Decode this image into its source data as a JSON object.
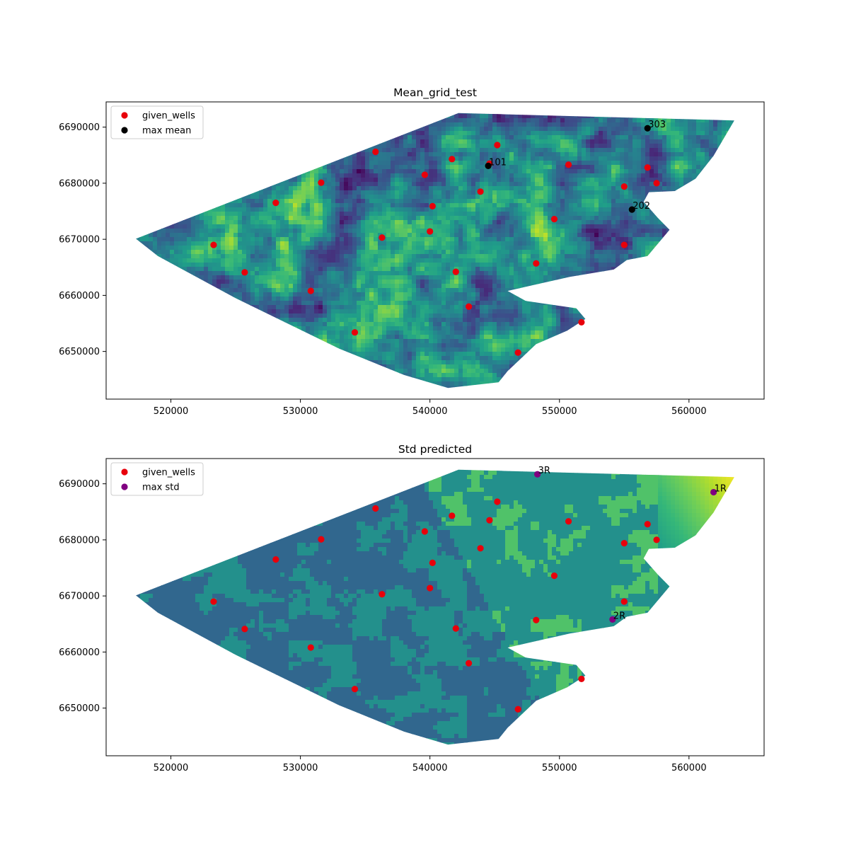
{
  "chart_data": [
    {
      "type": "scatter",
      "title": "Mean_grid_test",
      "xlabel": "",
      "ylabel": "",
      "xlim": [
        515000,
        565800
      ],
      "ylim": [
        6641500,
        6694500
      ],
      "xticks": [
        520000,
        530000,
        540000,
        550000,
        560000
      ],
      "yticks": [
        6650000,
        6660000,
        6670000,
        6680000,
        6690000
      ],
      "background": "viridis heatmap (mean) over survey area polygon",
      "legend_position": "top-left",
      "legend": [
        {
          "label": "given_wells",
          "color": "#e8000b"
        },
        {
          "label": "max mean",
          "color": "#000000"
        }
      ],
      "series": [
        {
          "name": "given_wells",
          "color": "#e8000b",
          "points": [
            [
              523300,
              6669000
            ],
            [
              525700,
              6664100
            ],
            [
              528100,
              6676500
            ],
            [
              530800,
              6660800
            ],
            [
              531600,
              6680100
            ],
            [
              534200,
              6653400
            ],
            [
              535800,
              6685600
            ],
            [
              536300,
              6670300
            ],
            [
              539600,
              6681500
            ],
            [
              540000,
              6671400
            ],
            [
              540200,
              6675900
            ],
            [
              541700,
              6684300
            ],
            [
              542000,
              6664200
            ],
            [
              543000,
              6658000
            ],
            [
              543900,
              6678500
            ],
            [
              544600,
              6683500
            ],
            [
              545200,
              6686800
            ],
            [
              546800,
              6649800
            ],
            [
              548200,
              6665700
            ],
            [
              549600,
              6673600
            ],
            [
              550700,
              6683300
            ],
            [
              551700,
              6655200
            ],
            [
              555000,
              6679400
            ],
            [
              555000,
              6669000
            ],
            [
              556800,
              6682800
            ],
            [
              557500,
              6680000
            ]
          ]
        },
        {
          "name": "max mean",
          "color": "#000000",
          "points": [
            [
              544500,
              6683100
            ],
            [
              555600,
              6675300
            ],
            [
              556800,
              6689800
            ]
          ],
          "labels": [
            "101",
            "202",
            "303"
          ]
        }
      ]
    },
    {
      "type": "scatter",
      "title": "Std predicted",
      "xlabel": "",
      "ylabel": "",
      "xlim": [
        515000,
        565800
      ],
      "ylim": [
        6641500,
        6694500
      ],
      "xticks": [
        520000,
        530000,
        540000,
        550000,
        560000
      ],
      "yticks": [
        6650000,
        6660000,
        6670000,
        6680000,
        6690000
      ],
      "background": "viridis heatmap (std) over survey area polygon",
      "legend_position": "top-left",
      "legend": [
        {
          "label": "given_wells",
          "color": "#e8000b"
        },
        {
          "label": "max std",
          "color": "#800080"
        }
      ],
      "series": [
        {
          "name": "given_wells",
          "color": "#e8000b",
          "points": [
            [
              523300,
              6669000
            ],
            [
              525700,
              6664100
            ],
            [
              528100,
              6676500
            ],
            [
              530800,
              6660800
            ],
            [
              531600,
              6680100
            ],
            [
              534200,
              6653400
            ],
            [
              535800,
              6685600
            ],
            [
              536300,
              6670300
            ],
            [
              539600,
              6681500
            ],
            [
              540000,
              6671400
            ],
            [
              540200,
              6675900
            ],
            [
              541700,
              6684300
            ],
            [
              542000,
              6664200
            ],
            [
              543000,
              6658000
            ],
            [
              543900,
              6678500
            ],
            [
              544600,
              6683500
            ],
            [
              545200,
              6686800
            ],
            [
              546800,
              6649800
            ],
            [
              548200,
              6665700
            ],
            [
              549600,
              6673600
            ],
            [
              550700,
              6683300
            ],
            [
              551700,
              6655200
            ],
            [
              555000,
              6679400
            ],
            [
              555000,
              6669000
            ],
            [
              556800,
              6682800
            ],
            [
              557500,
              6680000
            ]
          ]
        },
        {
          "name": "max std",
          "color": "#800080",
          "points": [
            [
              561900,
              6688500
            ],
            [
              554100,
              6665800
            ],
            [
              548300,
              6691700
            ]
          ],
          "labels": [
            "1R",
            "2R",
            "3R"
          ]
        }
      ]
    }
  ]
}
